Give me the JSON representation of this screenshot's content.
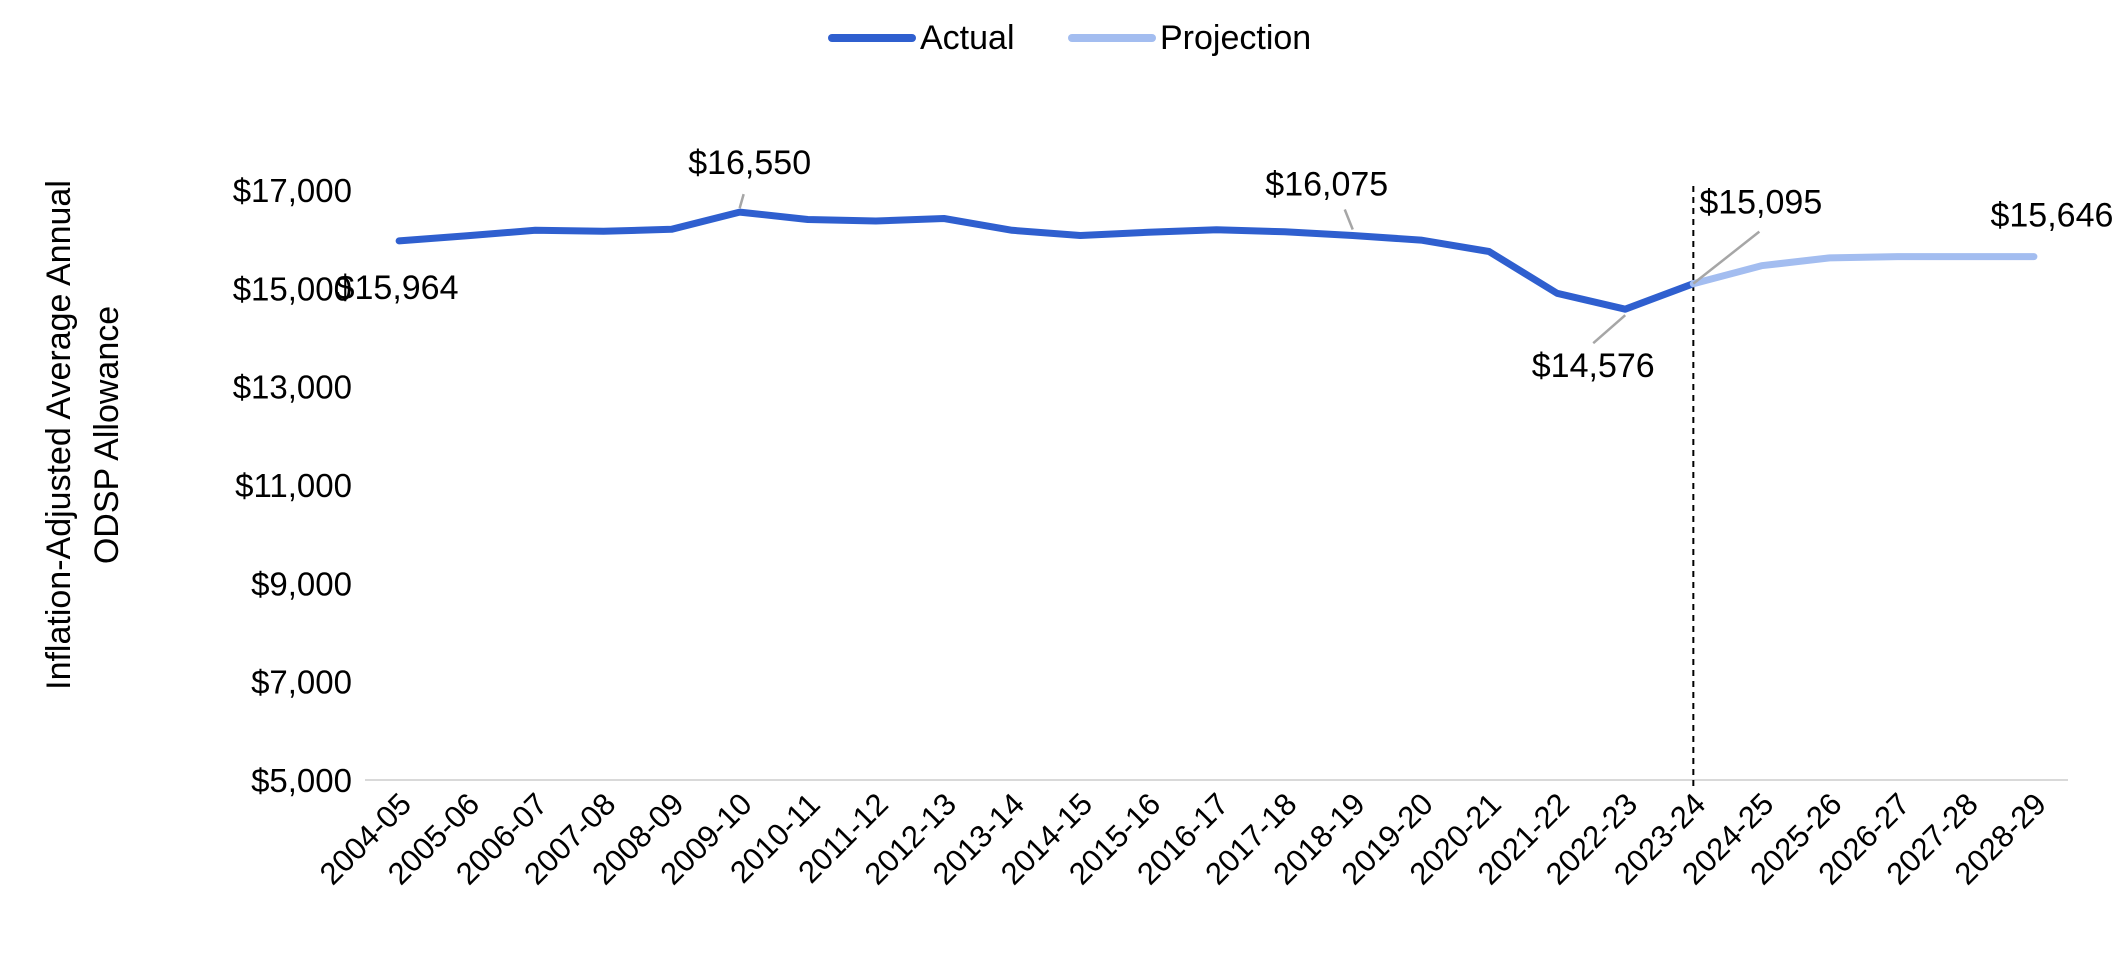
{
  "chart_data": {
    "type": "line",
    "title": "",
    "xlabel": "",
    "ylabel": "Inflation-Adjusted Average Annual ODSP Allowance",
    "ylabel_lines": [
      "Inflation-Adjusted Average Annual",
      "ODSP Allowance"
    ],
    "ylim": [
      5000,
      17000
    ],
    "yticks": [
      5000,
      7000,
      9000,
      11000,
      13000,
      15000,
      17000
    ],
    "ytick_labels": [
      "$5,000",
      "$7,000",
      "$9,000",
      "$11,000",
      "$13,000",
      "$15,000",
      "$17,000"
    ],
    "categories": [
      "2004-05",
      "2005-06",
      "2006-07",
      "2007-08",
      "2008-09",
      "2009-10",
      "2010-11",
      "2011-12",
      "2012-13",
      "2013-14",
      "2014-15",
      "2015-16",
      "2016-17",
      "2017-18",
      "2018-19",
      "2019-20",
      "2020-21",
      "2021-22",
      "2022-23",
      "2023-24",
      "2024-25",
      "2025-26",
      "2026-27",
      "2027-28",
      "2028-29"
    ],
    "legend_position": "top-center",
    "grid": false,
    "series": [
      {
        "name": "Actual",
        "color": "#2f5fcf",
        "values": [
          15964,
          16070,
          16180,
          16160,
          16200,
          16550,
          16400,
          16370,
          16420,
          16180,
          16075,
          16140,
          16190,
          16150,
          16075,
          15980,
          15750,
          14900,
          14576,
          15095,
          null,
          null,
          null,
          null,
          null
        ]
      },
      {
        "name": "Projection",
        "color": "#a3bdf0",
        "values": [
          null,
          null,
          null,
          null,
          null,
          null,
          null,
          null,
          null,
          null,
          null,
          null,
          null,
          null,
          null,
          null,
          null,
          null,
          null,
          15095,
          15460,
          15620,
          15646,
          15646,
          15646
        ]
      }
    ],
    "divider_after": "2023-24",
    "annotations": [
      {
        "category": "2004-05",
        "value": 15964,
        "text": "$15,964"
      },
      {
        "category": "2009-10",
        "value": 16550,
        "text": "$16,550"
      },
      {
        "category": "2018-19",
        "value": 16075,
        "text": "$16,075"
      },
      {
        "category": "2022-23",
        "value": 14576,
        "text": "$14,576"
      },
      {
        "category": "2023-24",
        "value": 15095,
        "text": "$15,095"
      },
      {
        "category": "2028-29",
        "value": 15646,
        "text": "$15,646"
      }
    ]
  }
}
